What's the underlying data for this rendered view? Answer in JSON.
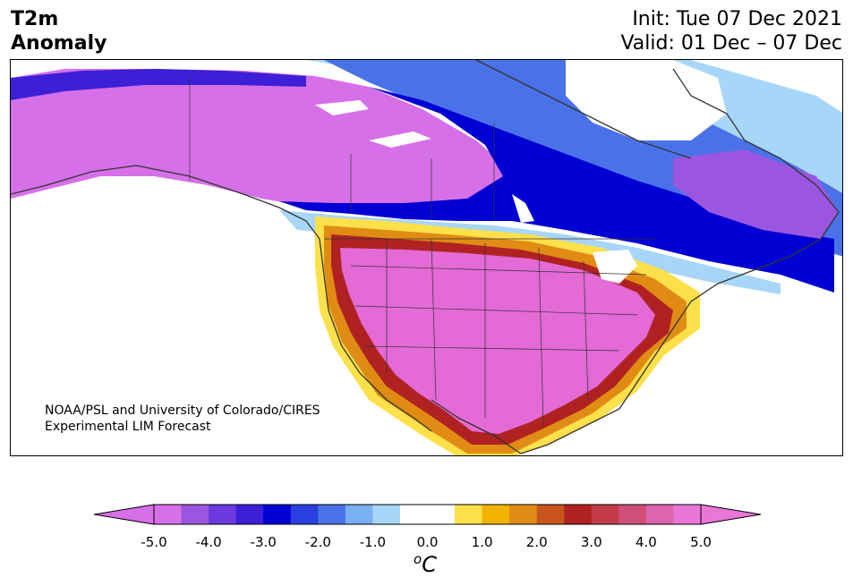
{
  "header": {
    "title_line1": "T2m",
    "title_line2": "Anomaly",
    "init": "Init: Tue 07 Dec 2021",
    "valid": "Valid: 01 Dec – 07 Dec"
  },
  "credit": {
    "line1": "NOAA/PSL and University of Colorado/CIRES",
    "line2": "Experimental LIM Forecast"
  },
  "colorbar": {
    "ticks": [
      "-5.0",
      "-4.0",
      "-3.0",
      "-2.0",
      "-1.0",
      "0.0",
      "1.0",
      "2.0",
      "3.0",
      "4.0",
      "5.0"
    ],
    "units_base": "C",
    "units_sup": "o",
    "colors": [
      "#d670e8",
      "#9a56e0",
      "#6a3adf",
      "#3c1fd6",
      "#0000d4",
      "#2a3fe0",
      "#4a72e8",
      "#78b0f2",
      "#a8d6f8",
      "#ffffff",
      "#ffffff",
      "#fde04a",
      "#f2b200",
      "#e08c14",
      "#c8561c",
      "#b02222",
      "#c33a4a",
      "#cf4f78",
      "#dd64ae",
      "#e977d8"
    ],
    "min_arrow_color": "#d670e8",
    "max_arrow_color": "#e977d8"
  },
  "map_colors": {
    "deep_negative": "#d670e8",
    "negative_blue": "#0000d4",
    "light_blue": "#a8d6f8",
    "positive_pink": "#e46ad6",
    "positive_red": "#b02222",
    "positive_orange": "#e08c14",
    "positive_yellow": "#fde04a"
  }
}
